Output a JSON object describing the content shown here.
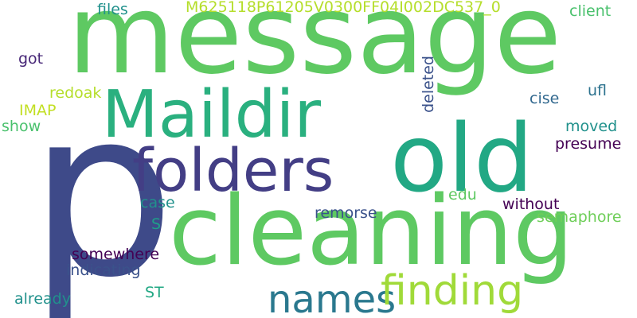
{
  "words": [
    {
      "text": "message",
      "color": "#5ec962"
    },
    {
      "text": "p",
      "color": "#3e4a89"
    },
    {
      "text": "cleaning",
      "color": "#5ec962"
    },
    {
      "text": "old",
      "color": "#22a884"
    },
    {
      "text": "Maildir",
      "color": "#2ab07f"
    },
    {
      "text": "folders",
      "color": "#433e85"
    },
    {
      "text": "names",
      "color": "#2a788e"
    },
    {
      "text": "finding",
      "color": "#a0da39"
    },
    {
      "text": "M625118P61205V0300FF04I002DC537_0",
      "color": "#b5de2b"
    },
    {
      "text": "files",
      "color": "#21918c"
    },
    {
      "text": "client",
      "color": "#4ac16d"
    },
    {
      "text": "got",
      "color": "#482878"
    },
    {
      "text": "redoak",
      "color": "#b5de2b"
    },
    {
      "text": "IMAP",
      "color": "#c2df23"
    },
    {
      "text": "show",
      "color": "#4ac16d"
    },
    {
      "text": "deleted",
      "color": "#3b528b"
    },
    {
      "text": "ufl",
      "color": "#2c728e"
    },
    {
      "text": "cise",
      "color": "#31688e"
    },
    {
      "text": "moved",
      "color": "#21918c"
    },
    {
      "text": "presume",
      "color": "#440154"
    },
    {
      "text": "edu",
      "color": "#5ec962"
    },
    {
      "text": "case",
      "color": "#21918c"
    },
    {
      "text": "S",
      "color": "#1f9e89"
    },
    {
      "text": "remorse",
      "color": "#3b528b"
    },
    {
      "text": "without",
      "color": "#440154"
    },
    {
      "text": "semaphore",
      "color": "#6ece58"
    },
    {
      "text": "somewhere",
      "color": "#440154"
    },
    {
      "text": "indicating",
      "color": "#3b528b"
    },
    {
      "text": "already",
      "color": "#21918c"
    },
    {
      "text": "ST",
      "color": "#22a884"
    }
  ]
}
